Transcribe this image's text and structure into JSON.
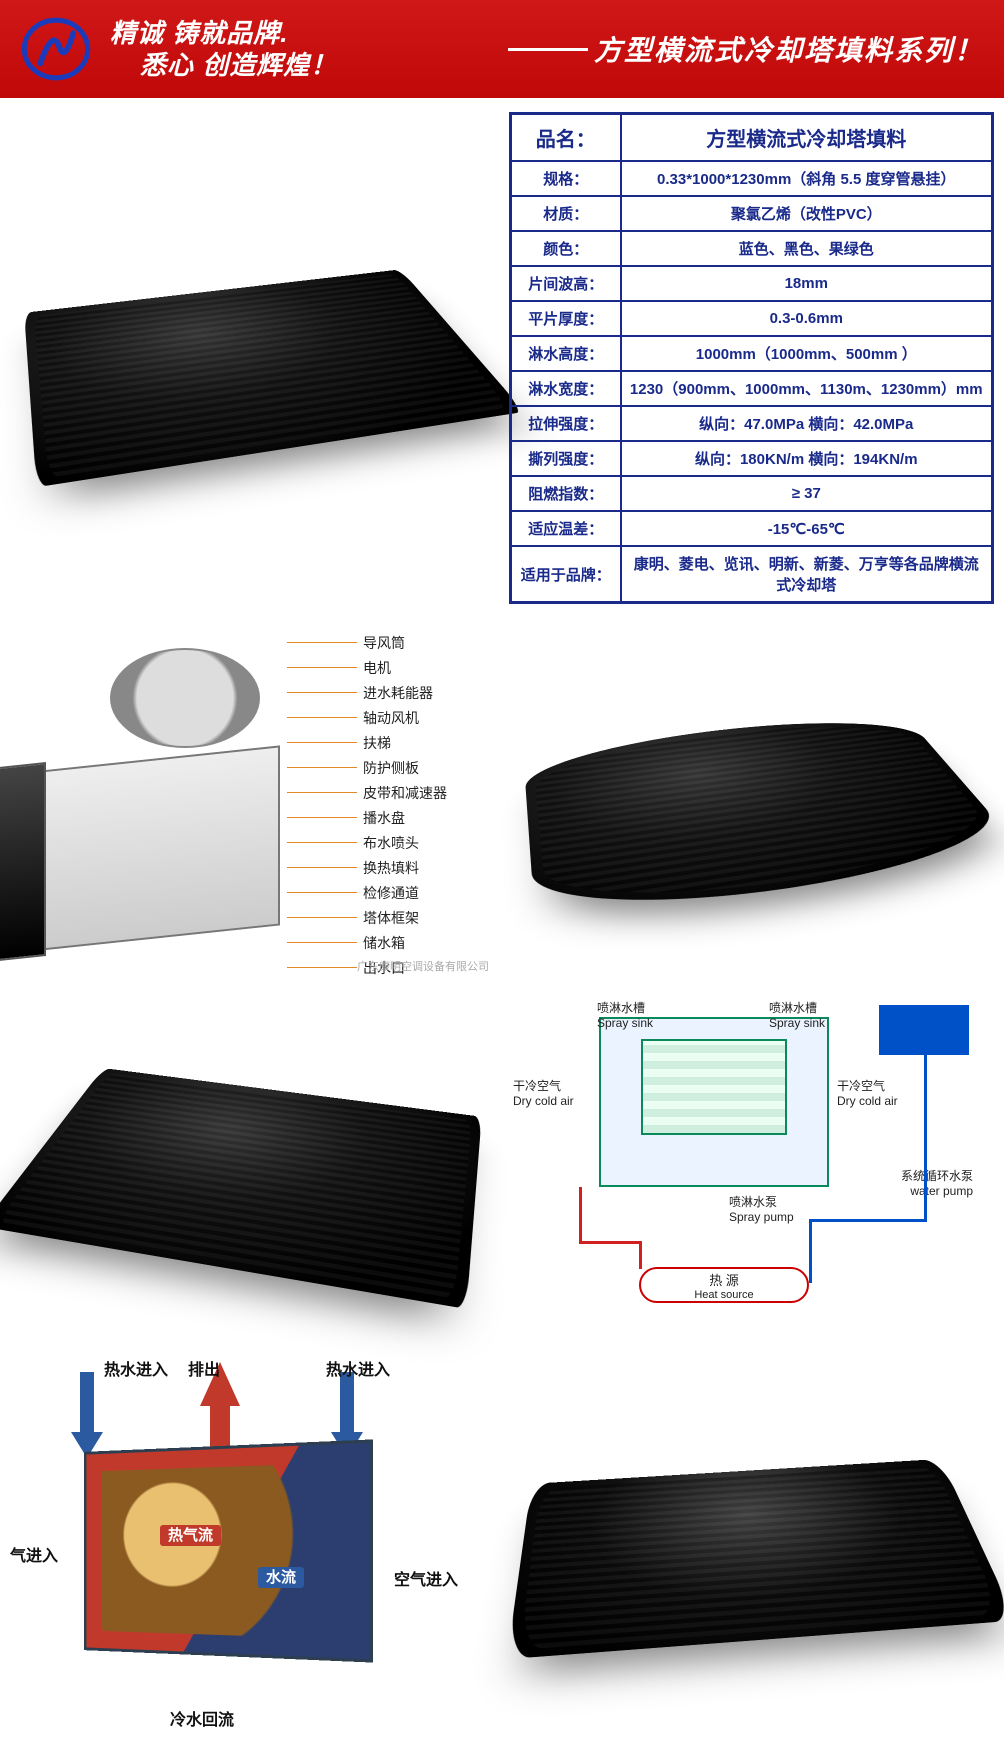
{
  "banner": {
    "bg_color": "#cc0a0a",
    "slogan_line1": "精诚 铸就品牌.",
    "slogan_line2": "悉心 创造辉煌！",
    "title": "方型横流式冷却塔填料系列！",
    "logo_stroke": "#1b3bbb"
  },
  "spec_table": {
    "border_color": "#1a2a8a",
    "text_color": "#1a2a8a",
    "rows": [
      {
        "k": "品名：",
        "v": "方型横流式冷却塔填料"
      },
      {
        "k": "规格：",
        "v": "0.33*1000*1230mm（斜角 5.5 度穿管悬挂）"
      },
      {
        "k": "材质：",
        "v": "聚氯乙烯（改性PVC）"
      },
      {
        "k": "颜色：",
        "v": "蓝色、黑色、果绿色"
      },
      {
        "k": "片间波高：",
        "v": "18mm"
      },
      {
        "k": "平片厚度：",
        "v": "0.3-0.6mm"
      },
      {
        "k": "淋水高度：",
        "v": "1000mm（1000mm、500mm ）"
      },
      {
        "k": "淋水宽度：",
        "v": "1230（900mm、1000mm、1130m、1230mm）mm"
      },
      {
        "k": "拉伸强度：",
        "v": "纵向：47.0MPa    横向：42.0MPa"
      },
      {
        "k": "撕列强度：",
        "v": "纵向：180KN/m    横向：194KN/m"
      },
      {
        "k": "阻燃指数：",
        "v": "≥ 37"
      },
      {
        "k": "适应温差：",
        "v": "-15℃-65℃"
      },
      {
        "k": "适用于品牌：",
        "v": "康明、菱电、览讯、明新、新菱、万亨等各品牌横流式冷却塔"
      }
    ]
  },
  "exploded_diagram": {
    "callouts": [
      "导风筒",
      "电机",
      "进水耗能器",
      "轴动风机",
      "扶梯",
      "防护侧板",
      "皮带和减速器",
      "播水盘",
      "布水喷头",
      "换热填料",
      "检修通道",
      "塔体框架",
      "储水箱",
      "出水口"
    ],
    "company": "广东康明空调设备有限公司"
  },
  "schematic": {
    "labels": {
      "spray_sink_l": "喷淋水槽\nSpray sink",
      "spray_sink_r": "喷淋水槽\nSpray sink",
      "dry_air_l": "干冷空气\nDry cold air",
      "dry_air_r": "干冷空气\nDry cold air",
      "spray_pump": "喷淋水泵\nSpray pump",
      "water_pump": "系统循环水泵\nwater pump",
      "heat_source_top": "热 源",
      "heat_source_bottom": "Heat source"
    },
    "colors": {
      "pipe_hot": "#d02020",
      "pipe_cold": "#0050c8",
      "tower_border": "#0a8a5a",
      "tank": "#0050c8"
    }
  },
  "cutaway": {
    "labels": {
      "hot_in_l": "热水进入",
      "hot_in_r": "热水进入",
      "exhaust": "排出",
      "air_in_l": "气进入",
      "air_in_r": "空气进入",
      "hot_air": "热气流",
      "water_flow": "水流",
      "cold_return": "冷水回流"
    },
    "colors": {
      "hot": "#c0392b",
      "cold": "#2c5aa0",
      "body": "#2c3e50"
    }
  },
  "product_images": {
    "desc1": "黑色PVC填料块-视角1",
    "desc2": "黑色PVC填料块-弧面视角",
    "desc3": "黑色PVC填料块-视角3",
    "desc4": "黑色PVC填料块-蜂窝特写"
  }
}
